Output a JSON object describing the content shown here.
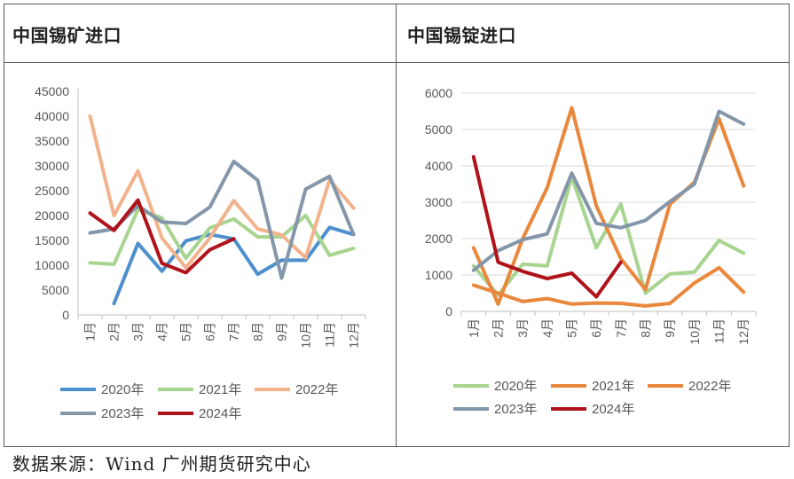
{
  "source": "数据来源：Wind  广州期货研究中心",
  "colors": {
    "2020年": "#4e8fcd",
    "2021年": "#a7d48f",
    "2022年": "#f2b28c",
    "2022年_right": "#e9883c",
    "2023年": "#8496a9",
    "2024年": "#b0121a"
  },
  "chart_data": [
    {
      "type": "line",
      "title": "中国锡矿进口",
      "categories": [
        "1月",
        "2月",
        "3月",
        "4月",
        "5月",
        "6月",
        "7月",
        "8月",
        "9月",
        "10月",
        "11月",
        "12月"
      ],
      "ylim": [
        0,
        45000
      ],
      "yticks": [
        "0",
        "5000",
        "10000",
        "15000",
        "20000",
        "25000",
        "30000",
        "35000",
        "40000",
        "45000"
      ],
      "grid": false,
      "legend": "bottom",
      "series": [
        {
          "name": "2020年",
          "color": "#4e8fcd",
          "values": [
            null,
            2300,
            14400,
            8800,
            14900,
            16200,
            15300,
            8200,
            11000,
            11000,
            17600,
            16200
          ]
        },
        {
          "name": "2021年",
          "color": "#a7d48f",
          "values": [
            10500,
            10200,
            21200,
            19500,
            11400,
            17500,
            19300,
            15700,
            15700,
            20000,
            12000,
            13400
          ]
        },
        {
          "name": "2022年",
          "color": "#f2b28c",
          "values": [
            40000,
            20000,
            29000,
            15500,
            9500,
            15500,
            23000,
            17300,
            16100,
            11500,
            27200,
            21500
          ]
        },
        {
          "name": "2023年",
          "color": "#8496a9",
          "values": [
            16500,
            17300,
            22000,
            18700,
            18400,
            21700,
            30900,
            27100,
            7400,
            25300,
            27900,
            16200
          ]
        },
        {
          "name": "2024年",
          "color": "#b0121a",
          "values": [
            20500,
            17000,
            23100,
            10400,
            8500,
            13100,
            15300,
            null,
            null,
            null,
            null,
            null
          ]
        }
      ]
    },
    {
      "type": "line",
      "title": "中国锡锭进口",
      "categories": [
        "1月",
        "2月",
        "3月",
        "4月",
        "5月",
        "6月",
        "7月",
        "8月",
        "9月",
        "10月",
        "11月",
        "12月"
      ],
      "ylim": [
        0,
        6000
      ],
      "yticks": [
        "0",
        "1000",
        "2000",
        "3000",
        "4000",
        "5000",
        "6000"
      ],
      "grid": true,
      "legend": "bottom",
      "series": [
        {
          "name": "2020年",
          "color": "#a7d48f",
          "values": [
            1250,
            450,
            1300,
            1250,
            3700,
            1750,
            2950,
            500,
            1030,
            1080,
            1950,
            1600
          ]
        },
        {
          "name": "2021年",
          "color": "#e9883c",
          "values": [
            720,
            500,
            270,
            350,
            200,
            230,
            220,
            150,
            220,
            780,
            1200,
            530
          ]
        },
        {
          "name": "2022年",
          "color": "#e9883c",
          "values": [
            1750,
            200,
            2000,
            3400,
            5600,
            2900,
            1450,
            600,
            2950,
            3550,
            5300,
            3450
          ]
        },
        {
          "name": "2023年",
          "color": "#8496a9",
          "values": [
            1130,
            1670,
            1970,
            2130,
            3800,
            2420,
            2300,
            2500,
            3020,
            3500,
            5500,
            5150
          ]
        },
        {
          "name": "2024年",
          "color": "#b0121a",
          "values": [
            4250,
            1350,
            1100,
            900,
            1050,
            400,
            1350,
            null,
            null,
            null,
            null,
            null
          ]
        }
      ]
    }
  ]
}
